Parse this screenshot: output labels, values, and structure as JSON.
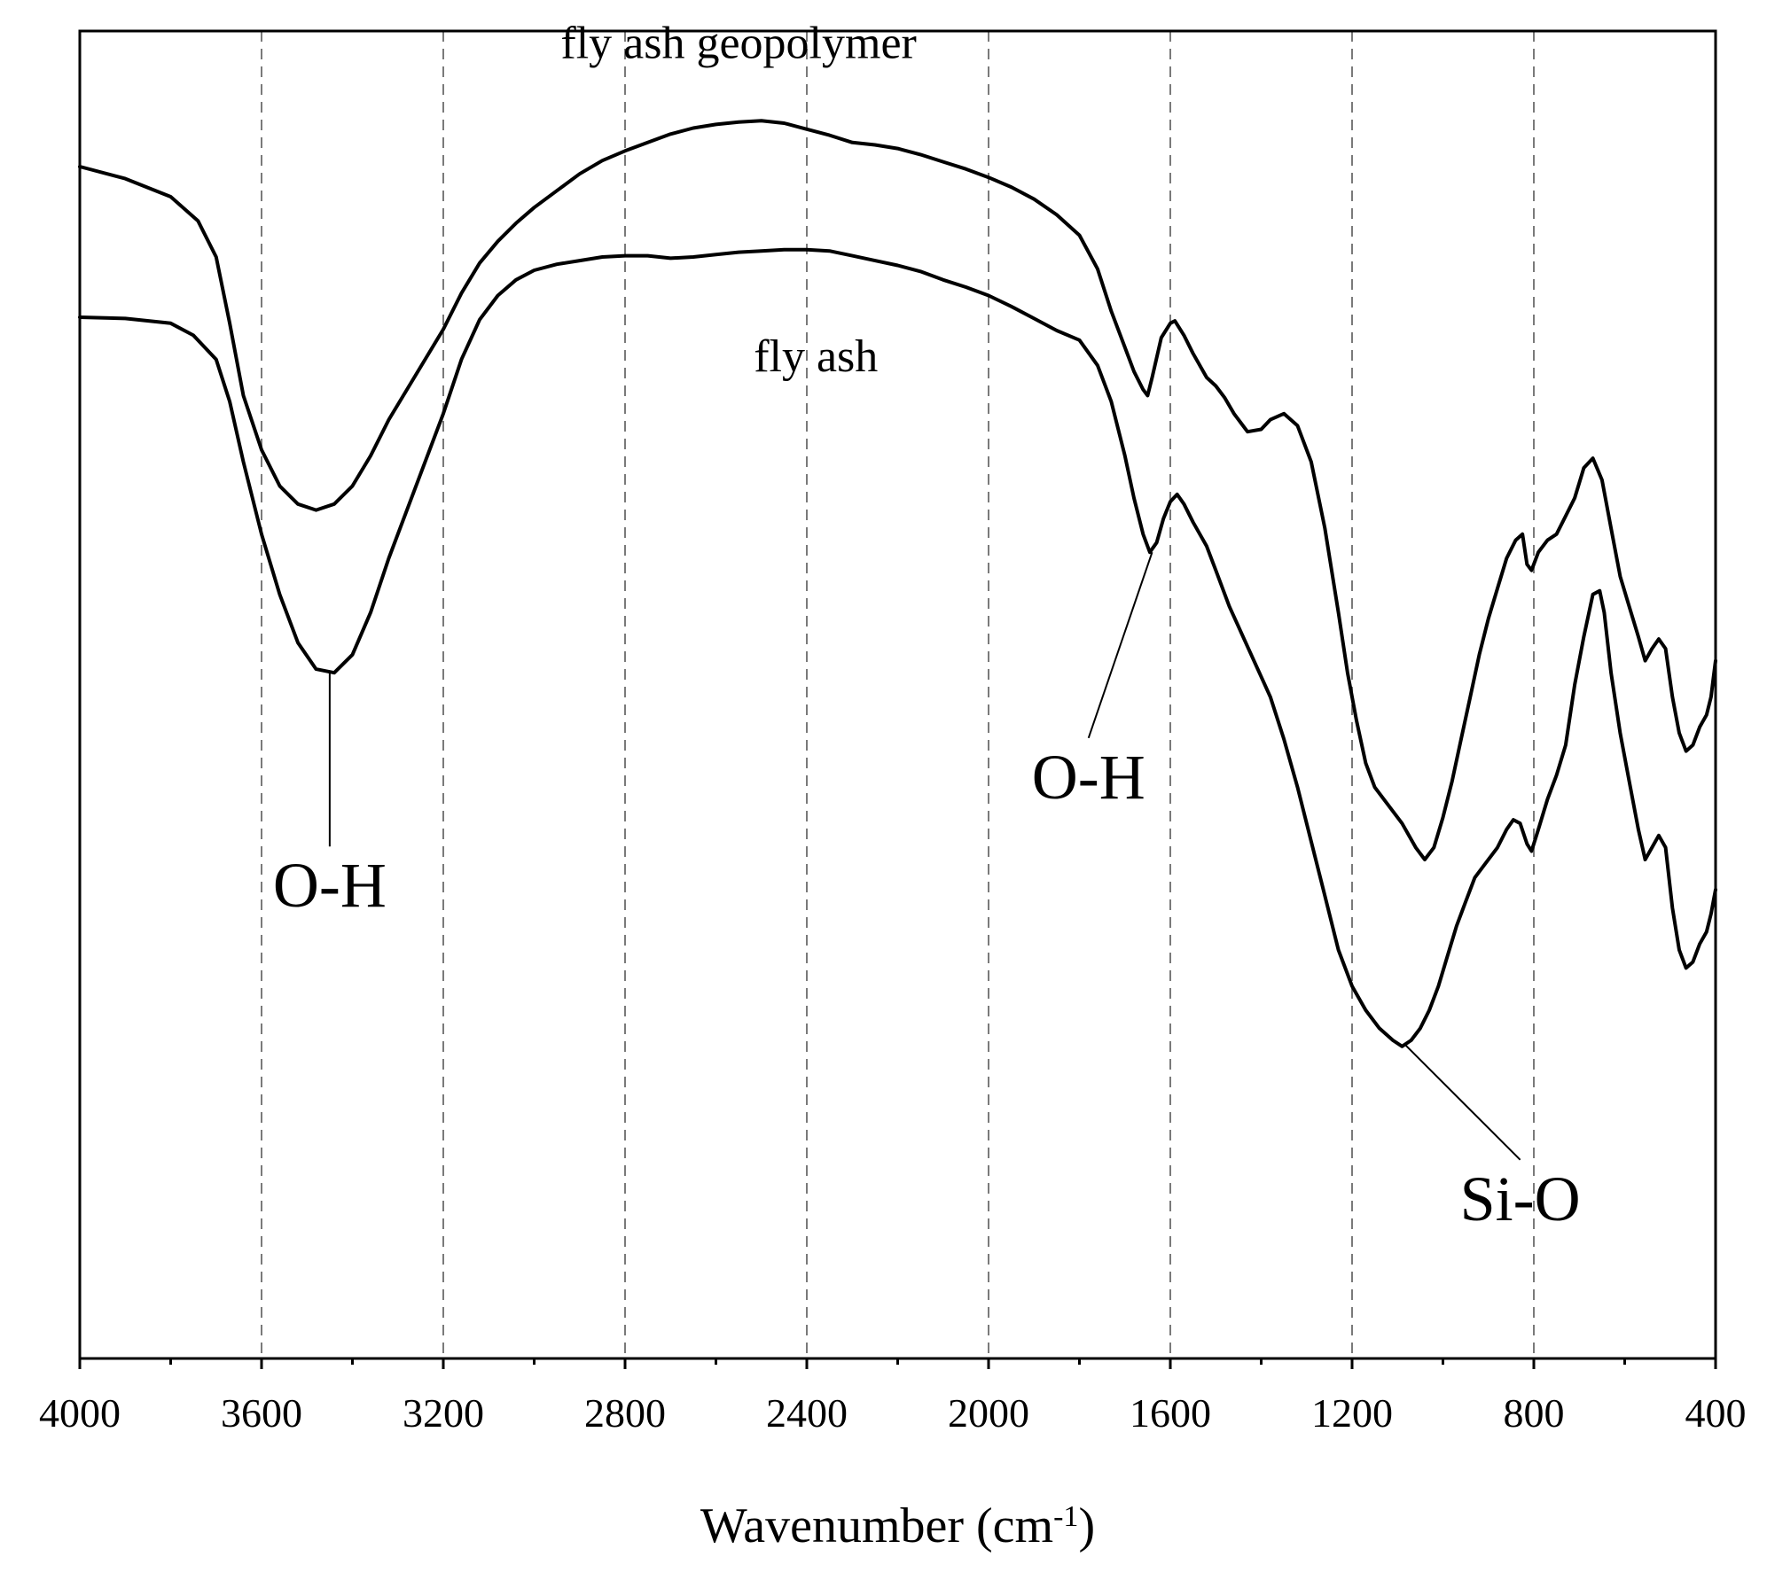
{
  "chart_data": {
    "type": "line",
    "title": "",
    "xlabel": {
      "text": "Wavenumber (cm",
      "superscript": "-1",
      "suffix": ")"
    },
    "ylabel": "",
    "xlim": [
      4000,
      400
    ],
    "x_reversed": true,
    "y_ticks_shown": false,
    "grid": "vertical dashed",
    "grid_positions": [
      3600,
      3200,
      2800,
      2400,
      2000,
      1600,
      1200,
      800
    ],
    "x_major_ticks": [
      "4000",
      "3600",
      "3200",
      "2800",
      "2400",
      "2000",
      "1600",
      "1200",
      "800",
      "400"
    ],
    "x_minor_ticks": [
      3800,
      3400,
      3000,
      2600,
      2200,
      1800,
      1400,
      1000,
      600
    ],
    "ylim": [
      0,
      100
    ],
    "series": [
      {
        "name": "fly ash geopolymer",
        "color": "#000000",
        "points": [
          [
            4000,
            95.0
          ],
          [
            3900,
            94.0
          ],
          [
            3800,
            92.5
          ],
          [
            3740,
            90.5
          ],
          [
            3700,
            87.5
          ],
          [
            3670,
            82.0
          ],
          [
            3640,
            76.0
          ],
          [
            3600,
            71.5
          ],
          [
            3560,
            68.5
          ],
          [
            3520,
            67.0
          ],
          [
            3480,
            66.5
          ],
          [
            3440,
            67.0
          ],
          [
            3400,
            68.5
          ],
          [
            3360,
            71.0
          ],
          [
            3320,
            74.0
          ],
          [
            3280,
            76.5
          ],
          [
            3240,
            79.0
          ],
          [
            3200,
            81.5
          ],
          [
            3160,
            84.5
          ],
          [
            3120,
            87.0
          ],
          [
            3080,
            88.8
          ],
          [
            3040,
            90.3
          ],
          [
            3000,
            91.6
          ],
          [
            2950,
            93.0
          ],
          [
            2900,
            94.4
          ],
          [
            2850,
            95.5
          ],
          [
            2800,
            96.3
          ],
          [
            2750,
            97.0
          ],
          [
            2700,
            97.7
          ],
          [
            2650,
            98.2
          ],
          [
            2600,
            98.5
          ],
          [
            2550,
            98.7
          ],
          [
            2500,
            98.8
          ],
          [
            2450,
            98.6
          ],
          [
            2400,
            98.1
          ],
          [
            2350,
            97.6
          ],
          [
            2300,
            97.0
          ],
          [
            2250,
            96.8
          ],
          [
            2200,
            96.5
          ],
          [
            2150,
            96.0
          ],
          [
            2100,
            95.4
          ],
          [
            2050,
            94.8
          ],
          [
            2000,
            94.1
          ],
          [
            1950,
            93.3
          ],
          [
            1900,
            92.3
          ],
          [
            1850,
            91.0
          ],
          [
            1800,
            89.3
          ],
          [
            1760,
            86.5
          ],
          [
            1730,
            83.0
          ],
          [
            1700,
            80.0
          ],
          [
            1680,
            78.0
          ],
          [
            1660,
            76.5
          ],
          [
            1650,
            76.0
          ],
          [
            1640,
            77.5
          ],
          [
            1620,
            80.8
          ],
          [
            1600,
            82.0
          ],
          [
            1590,
            82.2
          ],
          [
            1570,
            81.0
          ],
          [
            1550,
            79.5
          ],
          [
            1520,
            77.5
          ],
          [
            1500,
            76.8
          ],
          [
            1480,
            75.8
          ],
          [
            1460,
            74.5
          ],
          [
            1430,
            73.0
          ],
          [
            1400,
            73.2
          ],
          [
            1380,
            74.0
          ],
          [
            1350,
            74.5
          ],
          [
            1320,
            73.5
          ],
          [
            1290,
            70.5
          ],
          [
            1260,
            65.0
          ],
          [
            1230,
            58.0
          ],
          [
            1210,
            53.0
          ],
          [
            1190,
            49.0
          ],
          [
            1170,
            45.5
          ],
          [
            1150,
            43.5
          ],
          [
            1120,
            42.0
          ],
          [
            1090,
            40.5
          ],
          [
            1060,
            38.5
          ],
          [
            1040,
            37.5
          ],
          [
            1020,
            38.5
          ],
          [
            1000,
            41.0
          ],
          [
            980,
            44.0
          ],
          [
            960,
            47.5
          ],
          [
            940,
            51.0
          ],
          [
            920,
            54.5
          ],
          [
            900,
            57.5
          ],
          [
            880,
            60.0
          ],
          [
            860,
            62.5
          ],
          [
            840,
            64.0
          ],
          [
            825,
            64.5
          ],
          [
            815,
            62.0
          ],
          [
            805,
            61.5
          ],
          [
            790,
            63.0
          ],
          [
            770,
            64.0
          ],
          [
            750,
            64.5
          ],
          [
            730,
            66.0
          ],
          [
            710,
            67.5
          ],
          [
            690,
            70.0
          ],
          [
            670,
            70.8
          ],
          [
            650,
            69.0
          ],
          [
            630,
            65.0
          ],
          [
            610,
            61.0
          ],
          [
            590,
            58.5
          ],
          [
            570,
            56.0
          ],
          [
            555,
            54.0
          ],
          [
            540,
            55.0
          ],
          [
            525,
            55.8
          ],
          [
            510,
            55.0
          ],
          [
            495,
            51.0
          ],
          [
            480,
            48.0
          ],
          [
            465,
            46.5
          ],
          [
            450,
            47.0
          ],
          [
            435,
            48.5
          ],
          [
            420,
            49.5
          ],
          [
            410,
            51.0
          ],
          [
            405,
            52.5
          ],
          [
            400,
            54.0
          ]
        ]
      },
      {
        "name": "fly ash",
        "color": "#000000",
        "points": [
          [
            4000,
            82.5
          ],
          [
            3900,
            82.4
          ],
          [
            3800,
            82.0
          ],
          [
            3750,
            81.0
          ],
          [
            3700,
            79.0
          ],
          [
            3670,
            75.5
          ],
          [
            3640,
            70.5
          ],
          [
            3600,
            64.5
          ],
          [
            3560,
            59.5
          ],
          [
            3520,
            55.5
          ],
          [
            3480,
            53.3
          ],
          [
            3440,
            53.0
          ],
          [
            3400,
            54.5
          ],
          [
            3360,
            58.0
          ],
          [
            3320,
            62.5
          ],
          [
            3280,
            66.5
          ],
          [
            3240,
            70.5
          ],
          [
            3200,
            74.5
          ],
          [
            3160,
            79.0
          ],
          [
            3120,
            82.3
          ],
          [
            3080,
            84.3
          ],
          [
            3040,
            85.6
          ],
          [
            3000,
            86.4
          ],
          [
            2950,
            86.9
          ],
          [
            2900,
            87.2
          ],
          [
            2850,
            87.5
          ],
          [
            2800,
            87.6
          ],
          [
            2750,
            87.6
          ],
          [
            2700,
            87.4
          ],
          [
            2650,
            87.5
          ],
          [
            2600,
            87.7
          ],
          [
            2550,
            87.9
          ],
          [
            2500,
            88.0
          ],
          [
            2450,
            88.1
          ],
          [
            2400,
            88.1
          ],
          [
            2350,
            88.0
          ],
          [
            2300,
            87.6
          ],
          [
            2250,
            87.2
          ],
          [
            2200,
            86.8
          ],
          [
            2150,
            86.3
          ],
          [
            2100,
            85.6
          ],
          [
            2050,
            85.0
          ],
          [
            2000,
            84.3
          ],
          [
            1950,
            83.4
          ],
          [
            1900,
            82.4
          ],
          [
            1850,
            81.4
          ],
          [
            1800,
            80.6
          ],
          [
            1760,
            78.5
          ],
          [
            1730,
            75.5
          ],
          [
            1700,
            71.0
          ],
          [
            1680,
            67.5
          ],
          [
            1660,
            64.5
          ],
          [
            1645,
            63.0
          ],
          [
            1630,
            63.8
          ],
          [
            1615,
            65.8
          ],
          [
            1600,
            67.2
          ],
          [
            1585,
            67.8
          ],
          [
            1570,
            67.0
          ],
          [
            1550,
            65.5
          ],
          [
            1520,
            63.5
          ],
          [
            1500,
            61.5
          ],
          [
            1470,
            58.5
          ],
          [
            1440,
            56.0
          ],
          [
            1410,
            53.5
          ],
          [
            1380,
            51.0
          ],
          [
            1350,
            47.5
          ],
          [
            1320,
            43.5
          ],
          [
            1290,
            39.0
          ],
          [
            1260,
            34.5
          ],
          [
            1230,
            30.0
          ],
          [
            1200,
            27.0
          ],
          [
            1170,
            25.0
          ],
          [
            1140,
            23.5
          ],
          [
            1110,
            22.5
          ],
          [
            1090,
            22.0
          ],
          [
            1070,
            22.5
          ],
          [
            1050,
            23.5
          ],
          [
            1030,
            25.0
          ],
          [
            1010,
            27.0
          ],
          [
            990,
            29.5
          ],
          [
            970,
            32.0
          ],
          [
            950,
            34.0
          ],
          [
            930,
            36.0
          ],
          [
            910,
            37.0
          ],
          [
            880,
            38.5
          ],
          [
            860,
            40.0
          ],
          [
            845,
            40.8
          ],
          [
            830,
            40.5
          ],
          [
            815,
            38.8
          ],
          [
            805,
            38.2
          ],
          [
            790,
            40.0
          ],
          [
            770,
            42.5
          ],
          [
            750,
            44.5
          ],
          [
            730,
            47.0
          ],
          [
            710,
            52.0
          ],
          [
            690,
            56.0
          ],
          [
            670,
            59.5
          ],
          [
            655,
            59.8
          ],
          [
            645,
            58.0
          ],
          [
            630,
            53.0
          ],
          [
            610,
            48.0
          ],
          [
            590,
            44.0
          ],
          [
            570,
            40.0
          ],
          [
            555,
            37.5
          ],
          [
            540,
            38.5
          ],
          [
            525,
            39.5
          ],
          [
            510,
            38.5
          ],
          [
            495,
            33.5
          ],
          [
            480,
            30.0
          ],
          [
            465,
            28.5
          ],
          [
            450,
            29.0
          ],
          [
            435,
            30.5
          ],
          [
            420,
            31.5
          ],
          [
            410,
            33.0
          ],
          [
            405,
            34.0
          ],
          [
            400,
            35.0
          ]
        ]
      }
    ],
    "series_labels": [
      {
        "series": 0,
        "text": "fly ash geopolymer",
        "x": 2550,
        "y": 104.0
      },
      {
        "series": 1,
        "text": "fly ash",
        "x": 2380,
        "y": 78.0
      }
    ],
    "annotations": [
      {
        "text": "O-H",
        "target": [
          3450,
          53.0
        ],
        "label_at": [
          3450,
          38.0
        ]
      },
      {
        "text": "O-H",
        "target": [
          1640,
          63.0
        ],
        "label_at": [
          1780,
          47.0
        ]
      },
      {
        "text": "Si-O",
        "target": [
          1085,
          22.2
        ],
        "label_at": [
          830,
          12.0
        ]
      }
    ]
  }
}
